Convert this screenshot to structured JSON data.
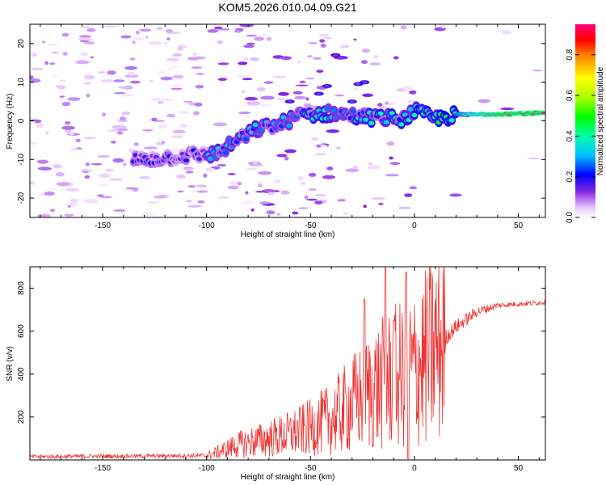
{
  "title": "KOM5.2026.010.04.09.G21",
  "chart_data": [
    {
      "type": "heatmap",
      "xlabel": "Height of straight line (km)",
      "ylabel": "Frequency (Hz)",
      "xlim": [
        -185,
        63
      ],
      "ylim": [
        -25,
        25
      ],
      "xticks": [
        -150,
        -100,
        -50,
        0,
        50
      ],
      "yticks": [
        -20,
        -10,
        0,
        10,
        20
      ],
      "colorbar": {
        "label": "Normalized spectral amplitude",
        "range": [
          0,
          0.95
        ],
        "ticks": [
          0.0,
          0.2,
          0.4,
          0.6,
          0.8
        ]
      },
      "ridge": [
        {
          "x": -130,
          "y": -10
        },
        {
          "x": -110,
          "y": -9
        },
        {
          "x": -95,
          "y": -8.5
        },
        {
          "x": -85,
          "y": -5
        },
        {
          "x": -75,
          "y": -2
        },
        {
          "x": -65,
          "y": -1
        },
        {
          "x": -55,
          "y": 1.5
        },
        {
          "x": -40,
          "y": 2
        },
        {
          "x": -25,
          "y": 1
        },
        {
          "x": -15,
          "y": 0.8
        },
        {
          "x": -5,
          "y": 0.5
        },
        {
          "x": 0,
          "y": 2.5
        },
        {
          "x": 10,
          "y": 0.5
        },
        {
          "x": 20,
          "y": 1.5
        },
        {
          "x": 40,
          "y": 1.8
        },
        {
          "x": 63,
          "y": 2
        }
      ]
    },
    {
      "type": "line",
      "xlabel": "Height of straight line (km)",
      "ylabel": "SNR (v/v)",
      "xlim": [
        -185,
        63
      ],
      "ylim": [
        0,
        900
      ],
      "xticks": [
        -150,
        -100,
        -50,
        0,
        50
      ],
      "yticks": [
        200,
        400,
        600,
        800
      ],
      "series": [
        {
          "name": "SNR",
          "color": "#ee3333",
          "envelope": [
            {
              "x": -185,
              "y": 15
            },
            {
              "x": -100,
              "y": 20
            },
            {
              "x": -95,
              "y": 35
            },
            {
              "x": -85,
              "y": 70
            },
            {
              "x": -70,
              "y": 100
            },
            {
              "x": -60,
              "y": 120
            },
            {
              "x": -50,
              "y": 150
            },
            {
              "x": -40,
              "y": 190
            },
            {
              "x": -30,
              "y": 260
            },
            {
              "x": -20,
              "y": 330
            },
            {
              "x": -10,
              "y": 380
            },
            {
              "x": 0,
              "y": 420
            },
            {
              "x": 10,
              "y": 520
            },
            {
              "x": 20,
              "y": 620
            },
            {
              "x": 30,
              "y": 690
            },
            {
              "x": 40,
              "y": 720
            },
            {
              "x": 63,
              "y": 735
            }
          ],
          "spikes": [
            {
              "x": -24,
              "y": 750
            },
            {
              "x": -14,
              "y": 895
            },
            {
              "x": -10,
              "y": 650
            },
            {
              "x": -4,
              "y": 875
            },
            {
              "x": -3,
              "y": 5
            }
          ]
        }
      ]
    }
  ]
}
